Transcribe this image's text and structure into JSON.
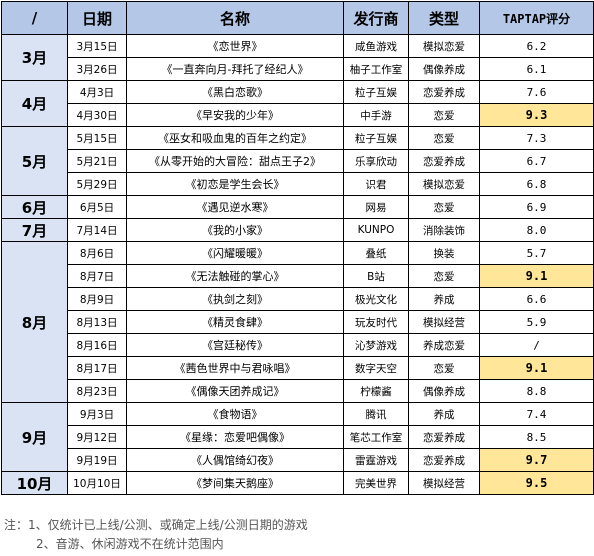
{
  "header": {
    "month": "/",
    "date": "日期",
    "name": "名称",
    "publisher": "发行商",
    "type": "类型",
    "score": "TAPTAP评分"
  },
  "groups": [
    {
      "month": "3月",
      "rows": [
        {
          "date": "3月15日",
          "name": "《恋世界》",
          "publisher": "咸鱼游戏",
          "type": "模拟恋爱",
          "score": "6.2",
          "highlight": false
        },
        {
          "date": "3月26日",
          "name": "《一直奔向月-拜托了经纪人》",
          "publisher": "柚子工作室",
          "type": "偶像养成",
          "score": "6.1",
          "highlight": false
        }
      ]
    },
    {
      "month": "4月",
      "rows": [
        {
          "date": "4月3日",
          "name": "《黑白恋歌》",
          "publisher": "粒子互娱",
          "type": "恋爱养成",
          "score": "7.6",
          "highlight": false
        },
        {
          "date": "4月30日",
          "name": "《早安我的少年》",
          "publisher": "中手游",
          "type": "恋爱",
          "score": "9.3",
          "highlight": true
        }
      ]
    },
    {
      "month": "5月",
      "rows": [
        {
          "date": "5月15日",
          "name": "《巫女和吸血鬼的百年之约定》",
          "publisher": "粒子互娱",
          "type": "恋爱",
          "score": "7.3",
          "highlight": false
        },
        {
          "date": "5月21日",
          "name": "《从零开始的大冒险：甜点王子2》",
          "publisher": "乐享欣动",
          "type": "恋爱养成",
          "score": "6.7",
          "highlight": false
        },
        {
          "date": "5月29日",
          "name": "《初恋是学生会长》",
          "publisher": "识君",
          "type": "模拟恋爱",
          "score": "6.8",
          "highlight": false
        }
      ]
    },
    {
      "month": "6月",
      "rows": [
        {
          "date": "6月5日",
          "name": "《遇见逆水寒》",
          "publisher": "网易",
          "type": "恋爱",
          "score": "6.9",
          "highlight": false
        }
      ]
    },
    {
      "month": "7月",
      "rows": [
        {
          "date": "7月14日",
          "name": "《我的小家》",
          "publisher": "KUNPO",
          "type": "消除装饰",
          "score": "8.0",
          "highlight": false
        }
      ]
    },
    {
      "month": "8月",
      "rows": [
        {
          "date": "8月6日",
          "name": "《闪耀暖暖》",
          "publisher": "叠纸",
          "type": "换装",
          "score": "5.7",
          "highlight": false
        },
        {
          "date": "8月7日",
          "name": "《无法触碰的掌心》",
          "publisher": "B站",
          "type": "恋爱",
          "score": "9.1",
          "highlight": true
        },
        {
          "date": "8月9日",
          "name": "《执剑之刻》",
          "publisher": "极光文化",
          "type": "养成",
          "score": "6.6",
          "highlight": false
        },
        {
          "date": "8月13日",
          "name": "《精灵食肆》",
          "publisher": "玩友时代",
          "type": "模拟经营",
          "score": "5.9",
          "highlight": false
        },
        {
          "date": "8月16日",
          "name": "《宫廷秘传》",
          "publisher": "沁梦游戏",
          "type": "养成恋爱",
          "score": "/",
          "highlight": false
        },
        {
          "date": "8月17日",
          "name": "《茜色世界中与君咏唱》",
          "publisher": "数字天空",
          "type": "恋爱",
          "score": "9.1",
          "highlight": true
        },
        {
          "date": "8月23日",
          "name": "《偶像天团养成记》",
          "publisher": "柠檬酱",
          "type": "偶像养成",
          "score": "8.8",
          "highlight": false
        }
      ]
    },
    {
      "month": "9月",
      "rows": [
        {
          "date": "9月3日",
          "name": "《食物语》",
          "publisher": "腾讯",
          "type": "养成",
          "score": "7.4",
          "highlight": false
        },
        {
          "date": "9月12日",
          "name": "《星缘：恋爱吧偶像》",
          "publisher": "笔芯工作室",
          "type": "恋爱养成",
          "score": "8.5",
          "highlight": false
        },
        {
          "date": "9月19日",
          "name": "《人偶馆绮幻夜》",
          "publisher": "雷霆游戏",
          "type": "恋爱养成",
          "score": "9.7",
          "highlight": true
        }
      ]
    },
    {
      "month": "10月",
      "rows": [
        {
          "date": "10月10日",
          "name": "《梦间集天鹅座》",
          "publisher": "完美世界",
          "type": "模拟经营",
          "score": "9.5",
          "highlight": true
        }
      ]
    }
  ],
  "notes": [
    "注：1、仅统计已上线/公测、或确定上线/公测日期的游戏",
    "2、音游、休闲游戏不在统计范围内"
  ],
  "colors": {
    "header_bg": "#b4c7e7",
    "month_bg": "#dae3f3",
    "highlight_bg": "#ffe699"
  }
}
